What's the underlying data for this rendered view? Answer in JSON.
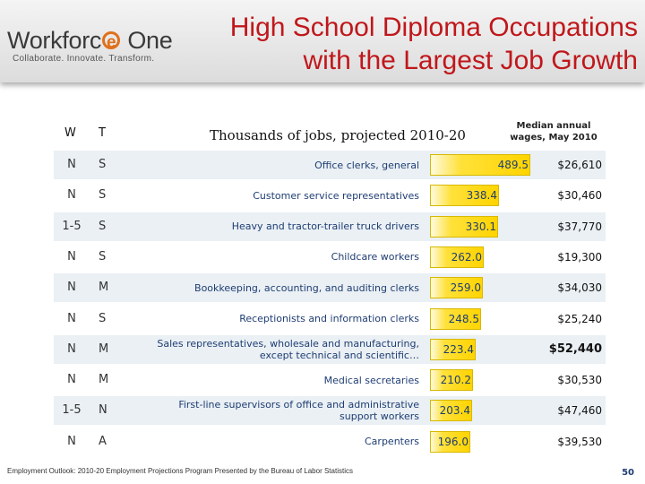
{
  "header": {
    "logo_text_a": "Workforc",
    "logo_text_b": "e",
    "logo_text_c": "One",
    "logo_tagline": "Collaborate.  Innovate.  Transform.",
    "title_line1": "High School Diploma Occupations",
    "title_line2": "with the Largest Job Growth"
  },
  "columns": {
    "w": "W",
    "t": "T",
    "thousands": "Thousands of jobs, projected 2010-20",
    "wages": "Median annual wages, May 2010"
  },
  "colors": {
    "title": "#c0171b",
    "bar": "#ffd400",
    "label": "#1f3d73"
  },
  "chart_data": {
    "type": "bar",
    "orientation": "horizontal",
    "title": "High School Diploma Occupations with the Largest Job Growth",
    "xlabel": "Thousands of jobs, projected 2010-20",
    "xlim": [
      0,
      489.5
    ],
    "categories": [
      "Office clerks, general",
      "Customer service representatives",
      "Heavy and tractor-trailer truck drivers",
      "Childcare workers",
      "Bookkeeping, accounting, and auditing clerks",
      "Receptionists and information clerks",
      "Sales representatives, wholesale and manufacturing, except technical and scientific…",
      "Medical secretaries",
      "First-line supervisors of office and administrative support workers",
      "Carpenters"
    ],
    "values": [
      489.5,
      338.4,
      330.1,
      262.0,
      259.0,
      248.5,
      223.4,
      210.2,
      203.4,
      196.0
    ],
    "value_labels": [
      "489.5",
      "338.4",
      "330.1",
      "262.0",
      "259.0",
      "248.5",
      "223.4",
      "210.2",
      "203.4",
      "196.0"
    ],
    "w": [
      "N",
      "N",
      "1-5",
      "N",
      "N",
      "N",
      "N",
      "N",
      "1-5",
      "N"
    ],
    "t": [
      "S",
      "S",
      "S",
      "S",
      "M",
      "S",
      "M",
      "M",
      "N",
      "A"
    ],
    "wages": [
      "$26,610",
      "$30,460",
      "$37,770",
      "$19,300",
      "$34,030",
      "$25,240",
      "$52,440",
      "$30,530",
      "$47,460",
      "$39,530"
    ],
    "wage_emphasis": [
      false,
      false,
      false,
      false,
      false,
      false,
      true,
      false,
      false,
      false
    ]
  },
  "footer": {
    "source": "Employment Outlook: 2010-20 Employment Projections Program Presented by the Bureau of Labor Statistics",
    "page": "50"
  }
}
